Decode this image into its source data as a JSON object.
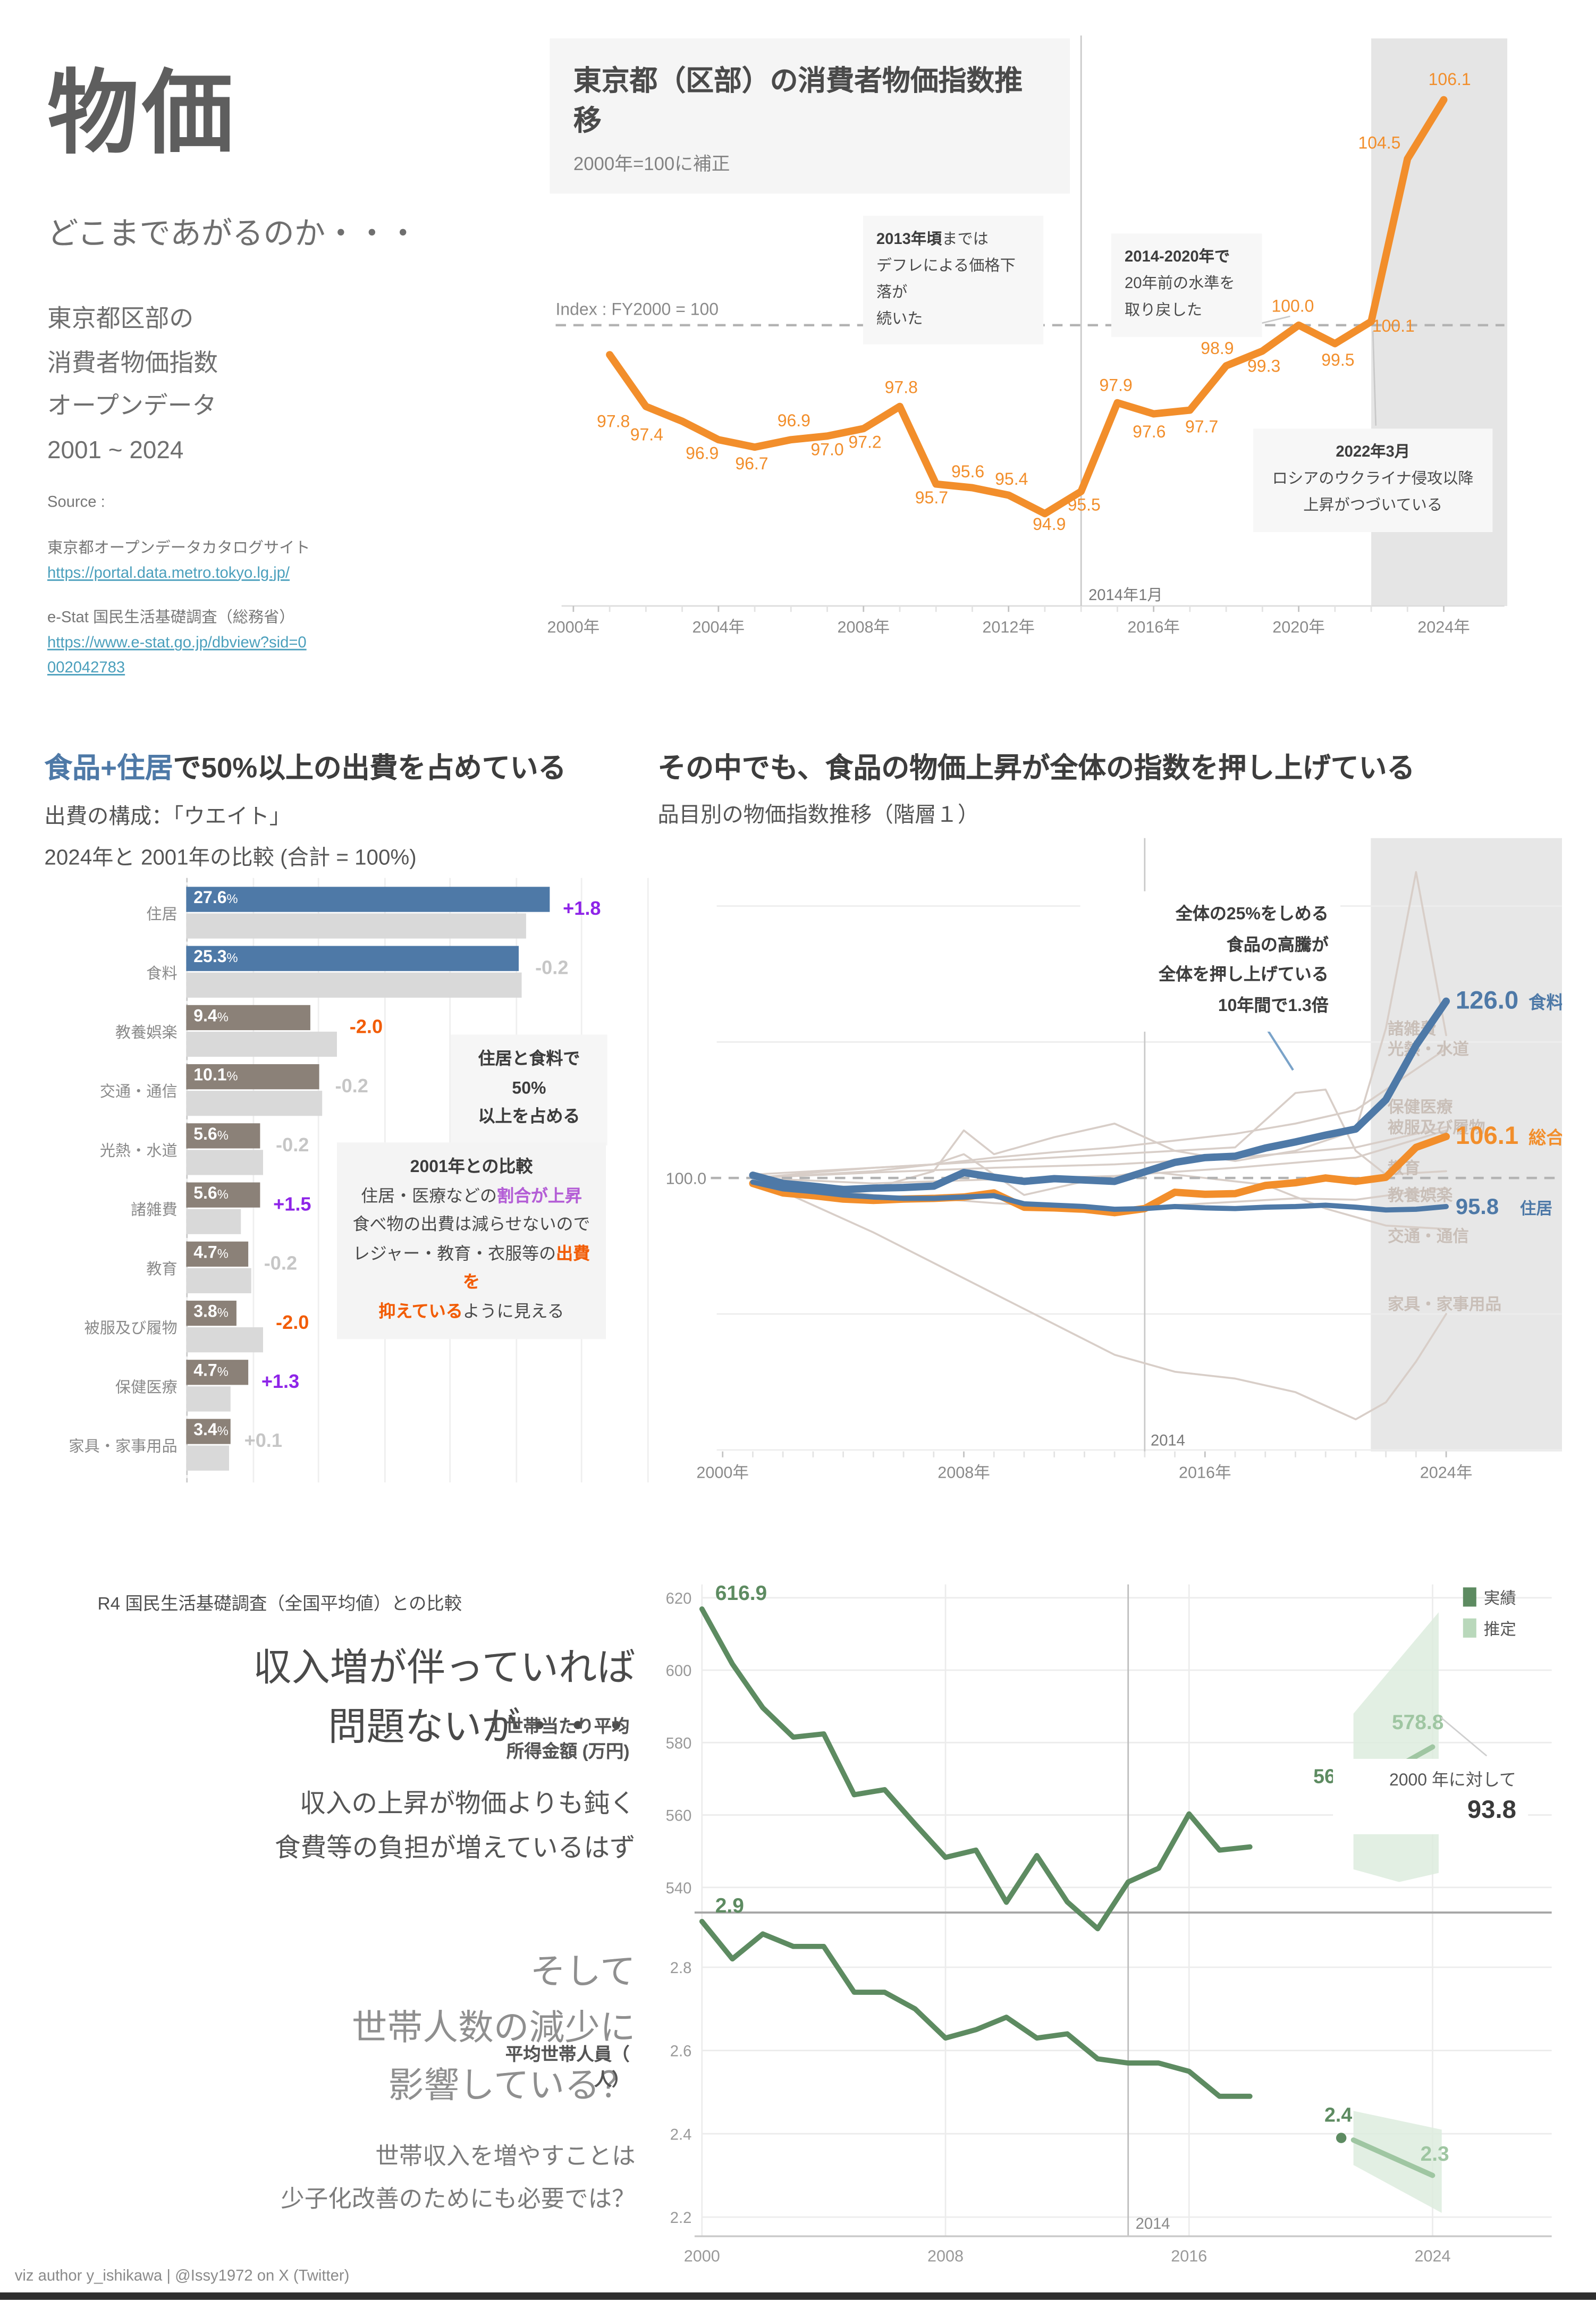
{
  "header": {
    "title": "物価",
    "subtitle": "どこまであがるのか・・・",
    "description": [
      "東京都区部の",
      "消費者物価指数",
      "オープンデータ",
      "2001 ~ 2024"
    ],
    "source_label": "Source :",
    "sources": [
      {
        "name": "東京都オープンデータカタログサイト",
        "url": "https://portal.data.metro.tokyo.lg.jp/"
      },
      {
        "name": "e-Stat 国民生活基礎調査（総務省）",
        "url": "https://www.e-stat.go.jp/dbview?sid=0002042783"
      }
    ]
  },
  "colors": {
    "orange": "#f28e2b",
    "blue": "#4e79a7",
    "purple": "#8e24e8",
    "purple_soft": "#b45fd6",
    "orange_strong": "#f25c05",
    "gray_change": "#c6c6c6",
    "bar_other": "#8b8178",
    "bar_2001": "#d9d9d9",
    "faint_line": "#d8cec8",
    "faint_label": "#c9bfb8",
    "green_actual": "#5d8b61",
    "green_estimate": "#9fc6a2",
    "green_band": "#ddecde",
    "shade": "#e5e5e5"
  },
  "chart_data": [
    {
      "type": "line",
      "title": "東京都（区部）の消費者物価指数推移",
      "subtitle": "2000年=100に補正",
      "index_note": "Index : FY2000 = 100",
      "x_tick_labels": [
        "2000年",
        "2004年",
        "2008年",
        "2012年",
        "2016年",
        "2020年",
        "2024年"
      ],
      "x_range": [
        2000,
        2024
      ],
      "ref_value": 100,
      "event": {
        "x": 2014,
        "label": "2014年1月"
      },
      "shade_from": 2022,
      "series": [
        {
          "name": "総合",
          "color": "#f28e2b",
          "x_start": 2001,
          "values": [
            99.2,
            97.8,
            97.4,
            96.9,
            96.7,
            96.9,
            97.0,
            97.2,
            97.8,
            95.7,
            95.6,
            95.4,
            94.9,
            95.5,
            97.9,
            97.6,
            97.7,
            98.9,
            99.3,
            100.0,
            99.5,
            100.1,
            104.5,
            106.1
          ],
          "point_labels": [
            null,
            "97.8",
            "97.4",
            "96.9",
            "96.7",
            "96.9",
            "97.0",
            "97.2",
            "97.8",
            "95.7",
            "95.6",
            "95.4",
            "94.9",
            "95.5",
            "97.9",
            "97.6",
            "97.7",
            "98.9",
            "99.3",
            "100.0",
            "99.5",
            "100.1",
            "104.5",
            "106.1"
          ]
        }
      ],
      "annotations": [
        {
          "id": "a2013",
          "lines": [
            [
              {
                "t": "2013年頃",
                "b": true
              },
              {
                "t": "までは"
              }
            ],
            [
              {
                "t": "デフレによる価格下落が"
              }
            ],
            [
              {
                "t": "続いた"
              }
            ]
          ]
        },
        {
          "id": "a2014",
          "lines": [
            [
              {
                "t": "2014-2020年で",
                "b": true
              }
            ],
            [
              {
                "t": "20年前の水準を"
              }
            ],
            [
              {
                "t": "取り戻した"
              }
            ]
          ]
        },
        {
          "id": "a2022",
          "lines": [
            [
              {
                "t": "2022年3月",
                "b": true
              }
            ],
            [
              {
                "t": "ロシアのウクライナ侵攻以降"
              }
            ],
            [
              {
                "t": "上昇がつづいている"
              }
            ]
          ]
        }
      ]
    },
    {
      "type": "bar",
      "title_rich": [
        {
          "t": "食品+住居",
          "b": true,
          "c": "#4e79a7"
        },
        {
          "t": "で50%以上の出費を占めている",
          "b": true
        }
      ],
      "subtitle1": "出費の構成：「ウエイト」",
      "subtitle2": "2024年と 2001年の比較 (合計 = 100%)",
      "categories": [
        "住居",
        "食料",
        "教養娯楽",
        "交通・通信",
        "光熱・水道",
        "諸雑費",
        "教育",
        "被服及び履物",
        "保健医療",
        "家具・家事用品"
      ],
      "values_2024": [
        27.6,
        25.3,
        9.4,
        10.1,
        5.6,
        5.6,
        4.7,
        3.8,
        4.7,
        3.4
      ],
      "values_2001": [
        25.8,
        25.5,
        11.4,
        10.3,
        5.8,
        4.1,
        4.9,
        5.8,
        3.4,
        3.3
      ],
      "changes": [
        "+1.8",
        "-0.2",
        "-2.0",
        "-0.2",
        "-0.2",
        "+1.5",
        "-0.2",
        "-2.0",
        "+1.3",
        "+0.1"
      ],
      "change_styles": [
        "purple",
        "gray",
        "orange",
        "gray",
        "gray",
        "purple",
        "gray",
        "orange",
        "purple",
        "gray"
      ],
      "annotations": [
        {
          "id": "b50",
          "lines": [
            [
              {
                "t": "住居と食料で50%",
                "b": true
              }
            ],
            [
              {
                "t": "以上を占める",
                "b": true
              }
            ]
          ]
        },
        {
          "id": "bcomp",
          "lines": [
            [
              {
                "t": "2001年との比較",
                "b": true
              }
            ],
            [
              {
                "t": "住居・医療などの"
              },
              {
                "t": "割合が上昇",
                "b": true,
                "c": "#b45fd6"
              }
            ],
            [
              {
                "t": "食べ物の出費は減らせないので"
              }
            ],
            [
              {
                "t": "レジャー・教育・衣服等の"
              },
              {
                "t": "出費を",
                "b": true,
                "c": "#f25c05"
              }
            ],
            [
              {
                "t": "抑えている",
                "b": true,
                "c": "#f25c05"
              },
              {
                "t": "ように見える"
              }
            ]
          ]
        }
      ]
    },
    {
      "type": "line",
      "title": "その中でも、食品の物価上昇が全体の指数を押し上げている",
      "subtitle": "品目別の物価指数推移（階層１）",
      "x_tick_labels": [
        "2000年",
        "2008年",
        "2016年",
        "2024年"
      ],
      "x_range": [
        2000,
        2024
      ],
      "ref_value": 100,
      "ref_label": "100.0",
      "event": {
        "x": 2014,
        "label": "2014"
      },
      "shade_from": 2021.5,
      "background_series": [
        {
          "name": "諸雑費",
          "label_value": 122,
          "x": [
            2001,
            2003,
            2005,
            2007,
            2009,
            2011,
            2013,
            2015,
            2017,
            2019,
            2021,
            2023,
            2024
          ],
          "values": [
            100,
            100.8,
            101.5,
            102,
            103,
            103.8,
            104.5,
            105.5,
            106.5,
            108,
            110,
            116,
            119
          ]
        },
        {
          "name": "光熱・水道",
          "label_value": 119,
          "x": [
            2001,
            2003,
            2005,
            2007,
            2008,
            2009,
            2011,
            2013,
            2015,
            2017,
            2019,
            2021,
            2022,
            2023,
            2024
          ],
          "values": [
            100,
            99,
            98.5,
            101,
            107,
            103.5,
            106,
            108,
            104,
            102.5,
            104,
            107,
            122,
            145,
            121
          ]
        },
        {
          "name": "保健医療",
          "label_value": 110.5,
          "x": [
            2001,
            2005,
            2009,
            2013,
            2017,
            2021,
            2024
          ],
          "values": [
            100,
            100.8,
            101.5,
            102,
            103,
            104.5,
            107.5
          ]
        },
        {
          "name": "被服及び履物",
          "label_value": 107.5,
          "x": [
            2001,
            2005,
            2009,
            2013,
            2017,
            2021,
            2024
          ],
          "values": [
            100,
            99.2,
            99.8,
            100.3,
            101.5,
            103,
            107
          ]
        },
        {
          "name": "教育",
          "label_value": 101.5,
          "x": [
            2001,
            2005,
            2009,
            2013,
            2017,
            2019,
            2020,
            2021,
            2022,
            2024
          ],
          "values": [
            100.5,
            101.5,
            102.5,
            103.5,
            104.5,
            112.5,
            113,
            104,
            100.5,
            101
          ]
        },
        {
          "name": "教養娯楽",
          "label_value": 97.5,
          "x": [
            2001,
            2003,
            2005,
            2007,
            2009,
            2011,
            2013,
            2015,
            2017,
            2019,
            2021,
            2023,
            2024
          ],
          "values": [
            100,
            98.5,
            97.5,
            97,
            96.3,
            95.8,
            95.5,
            96,
            96.5,
            97,
            96.8,
            98,
            98.5
          ]
        },
        {
          "name": "交通・通信",
          "label_value": 91.5,
          "x": [
            2001,
            2003,
            2005,
            2007,
            2008,
            2010,
            2012,
            2014,
            2016,
            2018,
            2020,
            2022,
            2024
          ],
          "values": [
            100,
            100.5,
            101,
            102,
            103.5,
            97.5,
            99.5,
            101,
            100,
            99,
            95.5,
            93,
            92.5
          ]
        },
        {
          "name": "家具・家事用品",
          "label_value": 81.5,
          "x": [
            2001,
            2003,
            2005,
            2007,
            2009,
            2011,
            2013,
            2015,
            2017,
            2019,
            2021,
            2022,
            2023,
            2024
          ],
          "values": [
            100,
            96,
            92,
            87.5,
            83,
            78.5,
            74,
            71.5,
            70.5,
            68.5,
            64.5,
            67,
            73,
            80
          ]
        }
      ],
      "series": [
        {
          "name": "食料",
          "color": "#4e79a7",
          "width": 5,
          "end_label": "126.0",
          "x_start": 2001,
          "values": [
            100.4,
            99.2,
            98.8,
            98.3,
            98.5,
            98.6,
            98.8,
            100.8,
            100.1,
            99.5,
            99.9,
            99.7,
            99.5,
            100.9,
            102.3,
            103.0,
            103.2,
            104.4,
            105.3,
            106.3,
            107.2,
            111.5,
            119.5,
            126.0
          ]
        },
        {
          "name": "総合",
          "color": "#f28e2b",
          "width": 5,
          "end_label": "106.1",
          "x_start": 2001,
          "values": [
            99.2,
            97.8,
            97.4,
            96.9,
            96.7,
            96.9,
            97.0,
            97.2,
            97.8,
            95.7,
            95.6,
            95.4,
            94.9,
            95.5,
            97.9,
            97.6,
            97.7,
            98.9,
            99.3,
            100.0,
            99.5,
            100.1,
            104.5,
            106.1
          ]
        },
        {
          "name": "住居",
          "color": "#4e79a7",
          "width": 3.5,
          "end_label": "95.8",
          "x_start": 2001,
          "values": [
            99.4,
            98.4,
            98.0,
            97.5,
            97.2,
            97.0,
            97.0,
            97.2,
            97.4,
            96.2,
            96.0,
            95.8,
            95.4,
            95.5,
            95.8,
            95.6,
            95.5,
            95.7,
            95.8,
            96.0,
            95.7,
            95.3,
            95.4,
            95.8
          ]
        }
      ],
      "annotation": {
        "lines": [
          "全体の25%をしめる",
          "食品の高騰が",
          "全体を押し上げている",
          "10年間で1.3倍"
        ]
      }
    },
    {
      "type": "line",
      "legend": [
        {
          "label": "実績",
          "color": "#5d8b61"
        },
        {
          "label": "推定",
          "color": "#b9d8bb"
        }
      ],
      "x_tick_labels": [
        "2000",
        "2008",
        "2016",
        "2024"
      ],
      "event": {
        "x": 2014,
        "label": "2014"
      },
      "income": {
        "ylabel_lines": [
          "1 世帯当たり平均",
          "所得金額 (万円)"
        ],
        "yticks": [
          620,
          600,
          580,
          560,
          540
        ],
        "x_start": 2000,
        "values": [
          616.9,
          601.7,
          589.6,
          581.5,
          582.4,
          565.6,
          567.0,
          557.5,
          548.3,
          550.3,
          535.9,
          548.8,
          536.0,
          528.6,
          541.5,
          545.3,
          560.3,
          550.3,
          551.2
        ],
        "start_label": "616.9",
        "dot": {
          "x": 2021,
          "v": 564.3,
          "label": "564.3"
        },
        "estimate": {
          "x": [
            2021.4,
            2024
          ],
          "v": [
            566.5,
            578.8
          ],
          "label": "578.8"
        },
        "band": [
          [
            2021.4,
            588
          ],
          [
            2024.2,
            616
          ],
          [
            2024.2,
            544
          ],
          [
            2022.9,
            541.5
          ],
          [
            2021.4,
            545
          ]
        ],
        "annotation": {
          "line1": "2000 年に対して",
          "line2": "93.8"
        }
      },
      "household": {
        "ylabel_lines": [
          "平均世帯人員（",
          "人）"
        ],
        "yticks": [
          2.8,
          2.6,
          2.4,
          2.2
        ],
        "x_start": 2000,
        "values": [
          2.91,
          2.82,
          2.88,
          2.85,
          2.85,
          2.74,
          2.74,
          2.7,
          2.63,
          2.65,
          2.68,
          2.63,
          2.64,
          2.58,
          2.57,
          2.57,
          2.55,
          2.49,
          2.49
        ],
        "start_label": "2.9",
        "dot": {
          "x": 2021,
          "v": 2.39,
          "label": "2.4"
        },
        "estimate": {
          "x": [
            2021.4,
            2024
          ],
          "v": [
            2.385,
            2.3
          ],
          "label": "2.3"
        },
        "band": [
          [
            2021.4,
            2.455
          ],
          [
            2024.3,
            2.41
          ],
          [
            2024.3,
            2.21
          ],
          [
            2021.4,
            2.325
          ]
        ]
      }
    }
  ],
  "bottom_left": {
    "note": "R4 国民生活基礎調査（全国平均値）との比較",
    "headline": [
      "収入増が伴っていれば",
      "問題ないが・・・"
    ],
    "para1": [
      "収入の上昇が物価よりも鈍く",
      "食費等の負担が増えているはず"
    ],
    "headline2": [
      "そして",
      "世帯人数の減少に",
      "影響している？"
    ],
    "para2": [
      "世帯収入を増やすことは",
      "少子化改善のためにも必要では？"
    ]
  },
  "footer": {
    "credit": "viz author y_ishikawa | @Issy1972 on X (Twitter)"
  }
}
